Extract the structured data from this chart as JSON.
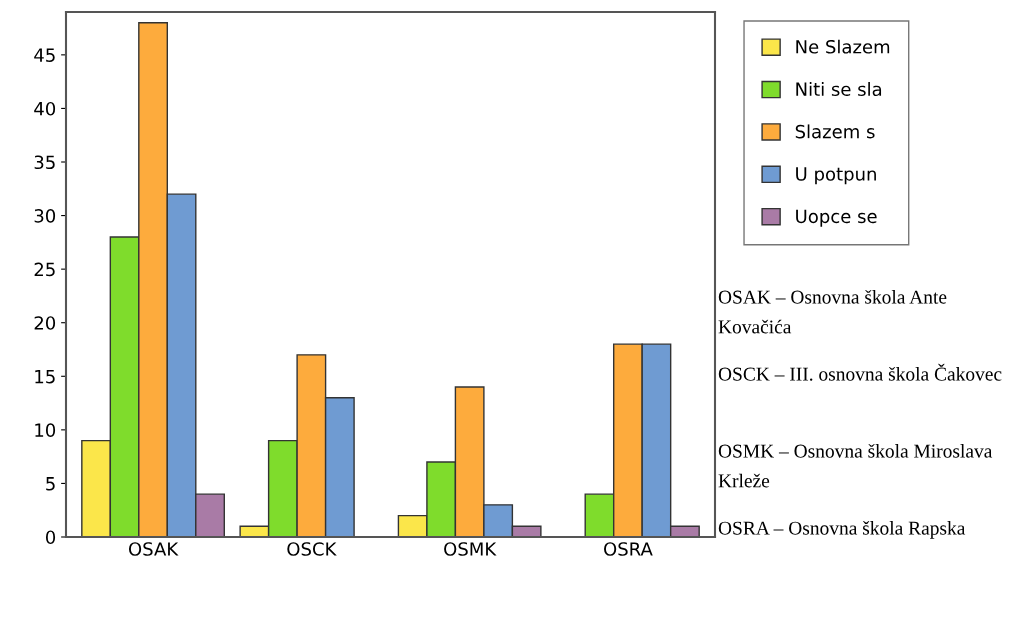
{
  "chart_data": {
    "type": "bar",
    "categories": [
      "OSAK",
      "OSCK",
      "OSMK",
      "OSRA"
    ],
    "series": [
      {
        "name": "Ne Slazem",
        "color": "#fbe64a",
        "values": [
          9,
          1,
          2,
          null
        ]
      },
      {
        "name": "Niti se sla",
        "color": "#7fdc2c",
        "values": [
          28,
          9,
          7,
          4
        ]
      },
      {
        "name": "Slazem s",
        "color": "#fdab3d",
        "values": [
          48,
          17,
          14,
          18
        ]
      },
      {
        "name": "U potpun",
        "color": "#6f9bd2",
        "values": [
          32,
          13,
          3,
          18
        ]
      },
      {
        "name": "Uopce se",
        "color": "#a97ba6",
        "values": [
          4,
          null,
          1,
          1
        ]
      }
    ],
    "ylim": [
      0,
      49
    ],
    "yticks": [
      0,
      5,
      10,
      15,
      20,
      25,
      30,
      35,
      40,
      45
    ],
    "grid": false,
    "legend": "right",
    "annotations": [
      "OSAK – Osnovna škola Ante Kovačića",
      "OSCK – III. osnovna škola Čakovec",
      "OSMK – Osnovna škola Miroslava Krleže",
      "OSRA – Osnovna škola Rapska"
    ]
  }
}
